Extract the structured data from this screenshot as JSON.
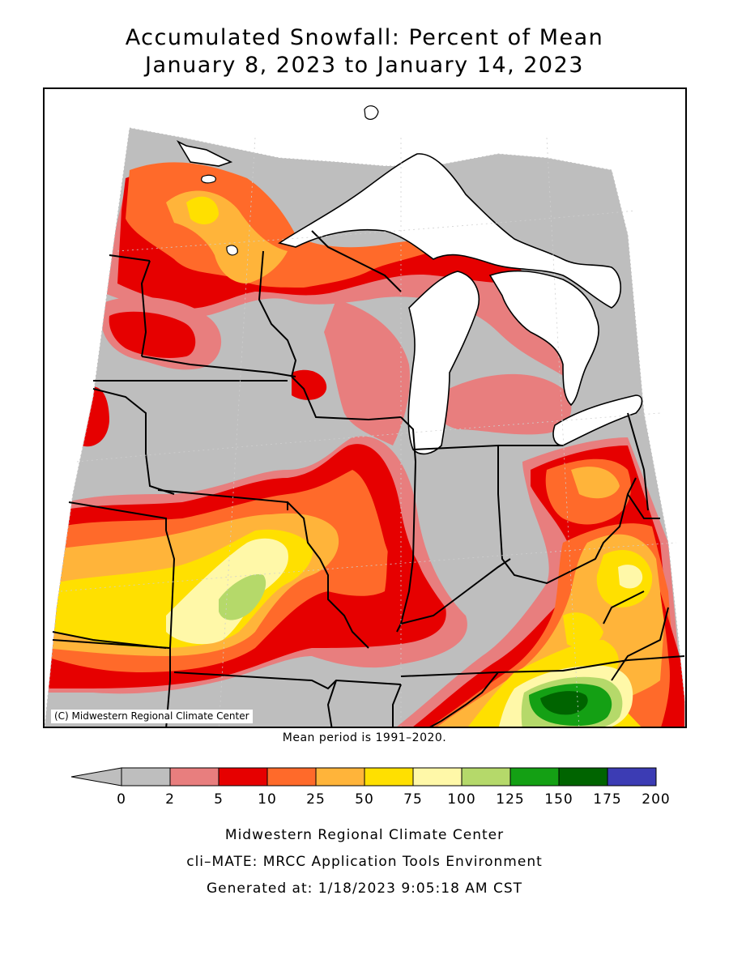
{
  "title": {
    "line1": "Accumulated Snowfall: Percent of Mean",
    "line2": "January 8, 2023 to January 14, 2023"
  },
  "map": {
    "copyright": "(C) Midwestern Regional Climate Center",
    "mean_period": "Mean period is 1991–2020.",
    "colors": {
      "lt2": "#bebebe",
      "c2_5": "#e87e7e",
      "c5_10": "#e60000",
      "c10_25": "#ff6a2a",
      "c25_50": "#ffb43a",
      "c50_75": "#ffe000",
      "c75_100": "#fff8a8",
      "c100_125": "#b5d96a",
      "c125_150": "#14a014",
      "c150_175": "#006400",
      "c175_200": "#3c3cb4",
      "water": "#ffffff"
    }
  },
  "legend": {
    "tick_labels": [
      "0",
      "2",
      "5",
      "10",
      "25",
      "50",
      "75",
      "100",
      "125",
      "150",
      "175",
      "200"
    ],
    "colors": [
      "#bebebe",
      "#e87e7e",
      "#e60000",
      "#ff6a2a",
      "#ffb43a",
      "#ffe000",
      "#fff8a8",
      "#b5d96a",
      "#14a014",
      "#006400",
      "#3c3cb4"
    ]
  },
  "footer": {
    "line1": "Midwestern Regional Climate Center",
    "line2": "cli–MATE: MRCC Application Tools Environment",
    "line3": "Generated at: 1/18/2023 9:05:18 AM CST"
  }
}
